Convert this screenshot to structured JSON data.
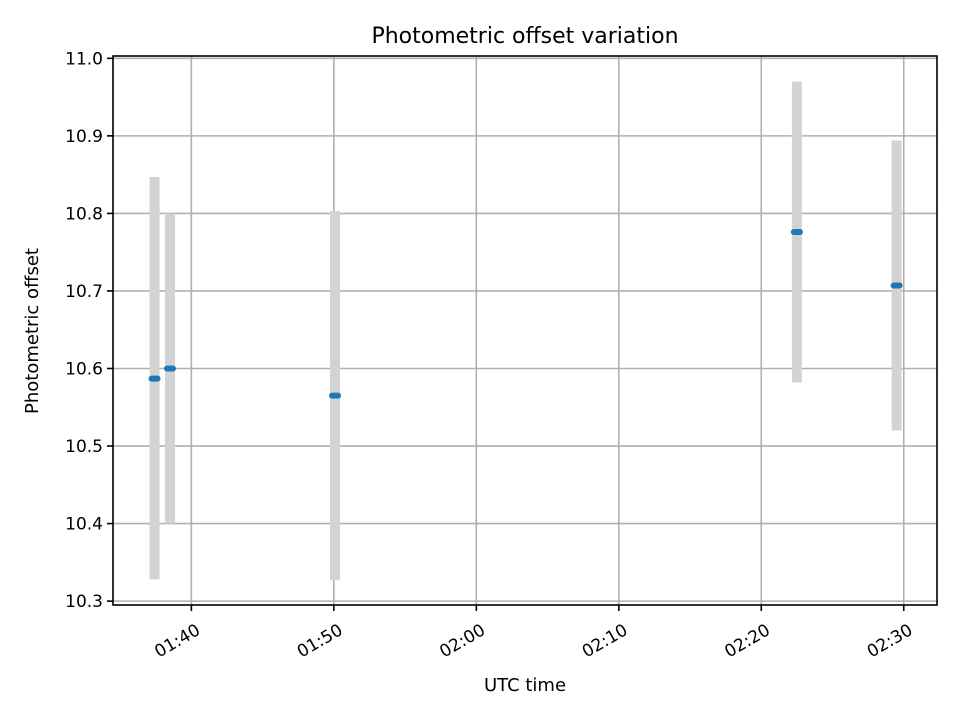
{
  "chart_data": {
    "type": "scatter",
    "title": "Photometric offset variation",
    "xlabel": "UTC time",
    "ylabel": "Photometric offset",
    "xlim": [
      "01:34:30",
      "02:32:20"
    ],
    "ylim": [
      10.295,
      11.003
    ],
    "grid": true,
    "x_ticks": [
      "01:40",
      "01:50",
      "02:00",
      "02:10",
      "02:20",
      "02:30"
    ],
    "y_ticks": [
      "10.3",
      "10.4",
      "10.5",
      "10.6",
      "10.7",
      "10.8",
      "10.9",
      "11.0"
    ],
    "error_bar_color": "#d3d3d3",
    "marker_color": "#1f77b4",
    "points": [
      {
        "time": "01:37:25",
        "value": 10.587,
        "lower": 10.328,
        "upper": 10.847
      },
      {
        "time": "01:38:30",
        "value": 10.6,
        "lower": 10.4,
        "upper": 10.8
      },
      {
        "time": "01:50:05",
        "value": 10.565,
        "lower": 10.327,
        "upper": 10.803
      },
      {
        "time": "02:22:30",
        "value": 10.776,
        "lower": 10.582,
        "upper": 10.97
      },
      {
        "time": "02:29:30",
        "value": 10.707,
        "lower": 10.52,
        "upper": 10.894
      }
    ]
  }
}
